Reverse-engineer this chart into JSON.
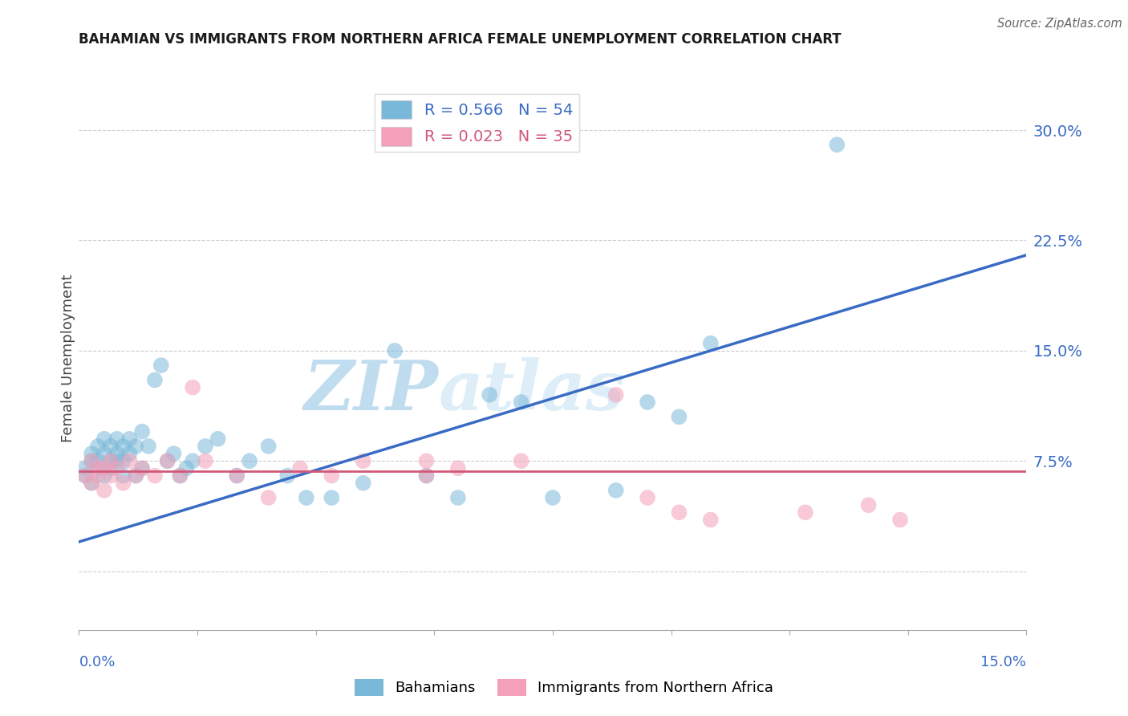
{
  "title": "BAHAMIAN VS IMMIGRANTS FROM NORTHERN AFRICA FEMALE UNEMPLOYMENT CORRELATION CHART",
  "source": "Source: ZipAtlas.com",
  "xmin": 0.0,
  "xmax": 0.15,
  "ymin": -0.04,
  "ymax": 0.33,
  "yticks": [
    0.0,
    0.075,
    0.15,
    0.225,
    0.3
  ],
  "ytick_labels": [
    "",
    "7.5%",
    "15.0%",
    "22.5%",
    "30.0%"
  ],
  "legend_label_blue": "Bahamians",
  "legend_label_pink": "Immigrants from Northern Africa",
  "blue_color": "#7ab8d9",
  "pink_color": "#f4a0b8",
  "line_blue_color": "#3a6bc4",
  "line_pink_color": "#d05878",
  "blue_legend_text": "R = 0.566   N = 54",
  "pink_legend_text": "R = 0.023   N = 35",
  "blue_x": [
    0.001,
    0.001,
    0.002,
    0.002,
    0.002,
    0.003,
    0.003,
    0.003,
    0.004,
    0.004,
    0.004,
    0.005,
    0.005,
    0.005,
    0.006,
    0.006,
    0.006,
    0.007,
    0.007,
    0.007,
    0.008,
    0.008,
    0.009,
    0.009,
    0.01,
    0.01,
    0.011,
    0.012,
    0.013,
    0.014,
    0.015,
    0.016,
    0.017,
    0.018,
    0.02,
    0.022,
    0.025,
    0.027,
    0.03,
    0.033,
    0.036,
    0.04,
    0.045,
    0.05,
    0.055,
    0.06,
    0.065,
    0.07,
    0.075,
    0.085,
    0.09,
    0.095,
    0.1,
    0.12
  ],
  "blue_y": [
    0.07,
    0.065,
    0.075,
    0.06,
    0.08,
    0.07,
    0.085,
    0.075,
    0.09,
    0.065,
    0.08,
    0.075,
    0.085,
    0.07,
    0.08,
    0.075,
    0.09,
    0.085,
    0.065,
    0.075,
    0.09,
    0.08,
    0.085,
    0.065,
    0.095,
    0.07,
    0.085,
    0.13,
    0.14,
    0.075,
    0.08,
    0.065,
    0.07,
    0.075,
    0.085,
    0.09,
    0.065,
    0.075,
    0.085,
    0.065,
    0.05,
    0.05,
    0.06,
    0.15,
    0.065,
    0.05,
    0.12,
    0.115,
    0.05,
    0.055,
    0.115,
    0.105,
    0.155,
    0.29
  ],
  "pink_x": [
    0.001,
    0.002,
    0.002,
    0.003,
    0.003,
    0.004,
    0.004,
    0.005,
    0.005,
    0.006,
    0.007,
    0.008,
    0.009,
    0.01,
    0.012,
    0.014,
    0.016,
    0.018,
    0.02,
    0.025,
    0.03,
    0.035,
    0.04,
    0.045,
    0.055,
    0.055,
    0.06,
    0.07,
    0.085,
    0.09,
    0.095,
    0.1,
    0.115,
    0.125,
    0.13
  ],
  "pink_y": [
    0.065,
    0.06,
    0.075,
    0.065,
    0.07,
    0.055,
    0.07,
    0.065,
    0.075,
    0.07,
    0.06,
    0.075,
    0.065,
    0.07,
    0.065,
    0.075,
    0.065,
    0.125,
    0.075,
    0.065,
    0.05,
    0.07,
    0.065,
    0.075,
    0.065,
    0.075,
    0.07,
    0.075,
    0.12,
    0.05,
    0.04,
    0.035,
    0.04,
    0.045,
    0.035
  ],
  "watermark_text": "ZIPatlas",
  "ylabel": "Female Unemployment",
  "blue_line_y0": 0.02,
  "blue_line_y1": 0.215,
  "pink_line_y0": 0.068,
  "pink_line_y1": 0.068
}
